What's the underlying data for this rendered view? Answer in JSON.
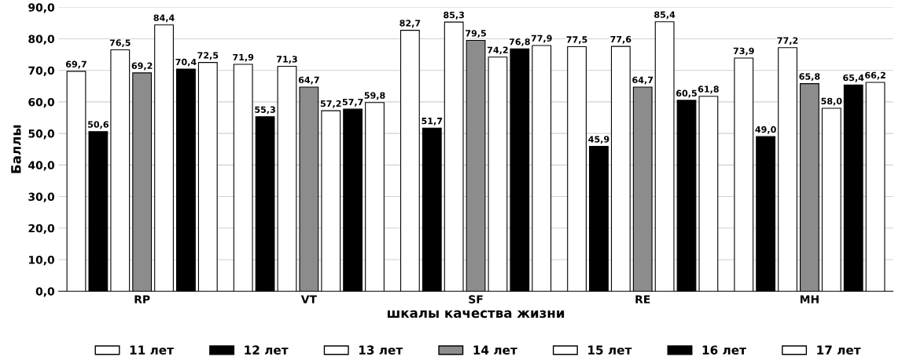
{
  "chart_data": {
    "type": "bar",
    "xlabel": "шкалы качества жизни",
    "ylabel": "Баллы",
    "categories": [
      "RP",
      "VT",
      "SF",
      "RE",
      "MH"
    ],
    "series": [
      {
        "name": "11 лет",
        "color": "#ffffff",
        "values": [
          69.7,
          71.9,
          82.7,
          77.5,
          73.9
        ],
        "value_labels": [
          "69,7",
          "71,9",
          "82,7",
          "77,5",
          "73,9"
        ]
      },
      {
        "name": "12 лет",
        "color": "#000000",
        "values": [
          50.6,
          55.3,
          51.7,
          45.9,
          49.0
        ],
        "value_labels": [
          "50,6",
          "55,3",
          "51,7",
          "45,9",
          "49,0"
        ]
      },
      {
        "name": "13 лет",
        "color": "#ffffff",
        "values": [
          76.5,
          71.3,
          85.3,
          77.6,
          77.2
        ],
        "value_labels": [
          "76,5",
          "71,3",
          "85,3",
          "77,6",
          "77,2"
        ]
      },
      {
        "name": "14 лет",
        "color": "#8c8c8c",
        "values": [
          69.2,
          64.7,
          79.5,
          64.7,
          65.8
        ],
        "value_labels": [
          "69,2",
          "64,7",
          "79,5",
          "64,7",
          "65,8"
        ]
      },
      {
        "name": "15 лет",
        "color": "#ffffff",
        "values": [
          84.4,
          57.2,
          74.2,
          85.4,
          58.0
        ],
        "value_labels": [
          "84,4",
          "57,2",
          "74,2",
          "85,4",
          "58,0"
        ]
      },
      {
        "name": "16 лет",
        "color": "#000000",
        "values": [
          70.4,
          57.7,
          76.8,
          60.5,
          65.4
        ],
        "value_labels": [
          "70,4",
          "57,7",
          "76,8",
          "60,5",
          "65,4"
        ]
      },
      {
        "name": "17 лет",
        "color": "#ffffff",
        "values": [
          72.5,
          59.8,
          77.9,
          61.8,
          66.2
        ],
        "value_labels": [
          "72,5",
          "59,8",
          "77,9",
          "61,8",
          "66,2"
        ]
      }
    ],
    "ylim": [
      0,
      90
    ],
    "yticks": [
      {
        "value": 0,
        "label": "0,0"
      },
      {
        "value": 10,
        "label": "10,0"
      },
      {
        "value": 20,
        "label": "20,0"
      },
      {
        "value": 30,
        "label": "30,0"
      },
      {
        "value": 40,
        "label": "40,0"
      },
      {
        "value": 50,
        "label": "50,0"
      },
      {
        "value": 60,
        "label": "60,0"
      },
      {
        "value": 70,
        "label": "70,0"
      },
      {
        "value": 80,
        "label": "80,0"
      },
      {
        "value": 90,
        "label": "90,0"
      }
    ],
    "grid": "y",
    "legend": "bottom"
  }
}
